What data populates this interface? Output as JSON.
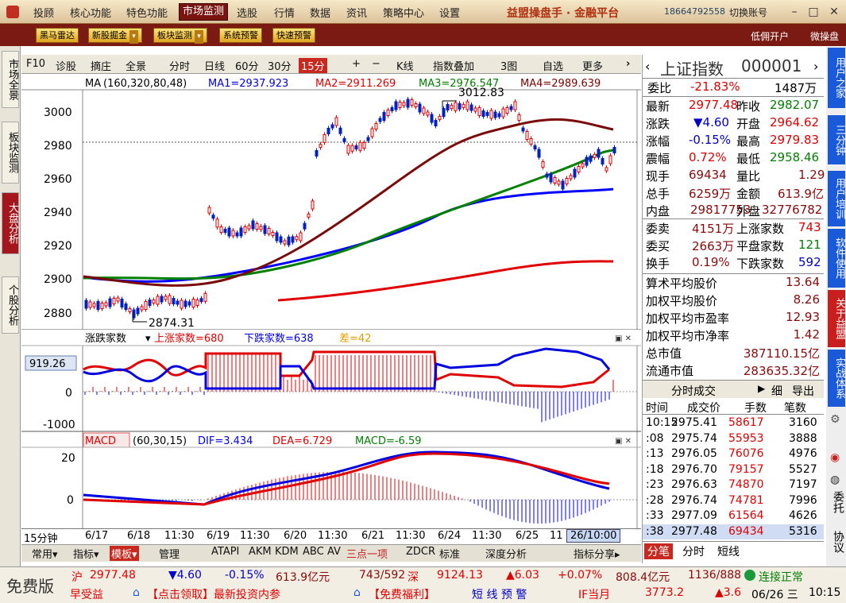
{
  "topbar": {
    "menus": [
      "投顾",
      "核心功能",
      "特色功能",
      "市场监测",
      "选股",
      "行情",
      "数据",
      "资讯",
      "策略中心",
      "设置"
    ],
    "active": "市场监测",
    "title": "益盟操盘手 · 金融平台",
    "phone": "18664792558",
    "switch_account": "切换账号"
  },
  "toolbar2": {
    "buttons": [
      "黑马雷达",
      "新股掘金",
      "板块监测",
      "系统预警",
      "快速预警"
    ],
    "right": [
      "低佣开户",
      "微操盘"
    ]
  },
  "left_tabs": [
    "市场全景",
    "板块监测",
    "大盘分析",
    "个股分析"
  ],
  "chart_toolbar": {
    "items": [
      "F10",
      "诊股",
      "摘庄",
      "全景",
      "分时",
      "日线",
      "60分",
      "30分",
      "15分",
      "+",
      "−",
      "K线",
      "指数叠加",
      "3图",
      "自选",
      "更多"
    ]
  },
  "ma_legend": {
    "name": "MA",
    "params": "(160,320,80,48)",
    "ma1": "MA1=2937.923",
    "ma2": "MA2=2911.269",
    "ma3": "MA3=2976.547",
    "ma4": "MA4=2989.639"
  },
  "kline": {
    "y_ticks": [
      "3000",
      "2980",
      "2960",
      "2940",
      "2920",
      "2900",
      "2880"
    ],
    "high_label": "3012.83",
    "low_label": "2874.31"
  },
  "breadth": {
    "name": "涨跌家数",
    "up": "上涨家数=680",
    "down": "下跌家数=638",
    "diff": "差=42",
    "y_ticks": [
      "0",
      "-1000"
    ],
    "marker": "919.26"
  },
  "macd": {
    "name": "MACD",
    "params": "(60,30,15)",
    "dif": "DIF=3.434",
    "dea": "DEA=6.729",
    "macd": "MACD=-6.59",
    "y_ticks": [
      "20",
      "0"
    ]
  },
  "xaxis": {
    "period": "15分钟",
    "labels": [
      "6/17",
      "6/18",
      "11:30",
      "6/19",
      "11:30",
      "6/20",
      "11:30",
      "6/21",
      "11:30",
      "6/24",
      "11:30",
      "6/25",
      "11"
    ],
    "cursor": "26/10:00"
  },
  "bottom_tabs": [
    "常用",
    "指标",
    "模板",
    "管理",
    "ATAPI",
    "AKM",
    "KDM",
    "ABC",
    "AV",
    "三点一项",
    "ZDCR",
    "标准",
    "深度分析",
    "指标分享"
  ],
  "quote": {
    "name": "上证指数",
    "code": "000001",
    "wb_label": "委比",
    "wb": "-21.83%",
    "wb_vol": "1487万",
    "rows": [
      [
        "最新",
        "2977.48",
        "昨收",
        "2982.07"
      ],
      [
        "涨跌",
        "▼4.60",
        "开盘",
        "2964.62"
      ],
      [
        "涨幅",
        "-0.15%",
        "最高",
        "2979.83"
      ],
      [
        "震幅",
        "0.72%",
        "最低",
        "2958.46"
      ],
      [
        "现手",
        "69434",
        "量比",
        "1.29"
      ],
      [
        "总手",
        "6259万",
        "金额",
        "613.9亿"
      ],
      [
        "内盘",
        "29817753",
        "外盘",
        "32776782"
      ]
    ],
    "rows2": [
      [
        "委卖",
        "4151万",
        "上涨家数",
        "743"
      ],
      [
        "委买",
        "2663万",
        "平盘家数",
        "121"
      ],
      [
        "换手",
        "0.19%",
        "下跌家数",
        "592"
      ]
    ],
    "stats": [
      [
        "算术平均股价",
        "13.64"
      ],
      [
        "加权平均股价",
        "8.26"
      ],
      [
        "加权平均市盈率",
        "12.93"
      ],
      [
        "加权平均市净率",
        "1.42"
      ],
      [
        "总市值",
        "387110.15亿"
      ],
      [
        "流通市值",
        "283635.32亿"
      ]
    ]
  },
  "ticks": {
    "title": "分时成交",
    "btn1": "细",
    "btn2": "导出",
    "headers": [
      "时间",
      "成交价",
      "手数",
      "笔数"
    ],
    "rows": [
      [
        "10:15",
        "2975.41",
        "58617",
        "3160"
      ],
      [
        ":08",
        "2975.74",
        "55953",
        "3888"
      ],
      [
        ":13",
        "2976.05",
        "76076",
        "4976"
      ],
      [
        ":18",
        "2976.70",
        "79157",
        "5527"
      ],
      [
        ":23",
        "2976.63",
        "74870",
        "7197"
      ],
      [
        ":28",
        "2976.74",
        "74781",
        "7996"
      ],
      [
        ":33",
        "2977.09",
        "61564",
        "4626"
      ],
      [
        ":38",
        "2977.48",
        "69434",
        "5316"
      ]
    ],
    "tabs": [
      "分笔",
      "分时",
      "短线"
    ]
  },
  "far_right": [
    "用户之家",
    "三分钟",
    "用户培训",
    "软件使用",
    "关于益盟",
    "实战体系",
    "委托",
    "协议"
  ],
  "status": {
    "free": "免费版",
    "sh_label": "沪",
    "sh": "2977.48",
    "sh_chg": "▼4.60",
    "sh_pct": "-0.15%",
    "sh_amt": "613.9亿元",
    "sh_ud": "743/592",
    "sz_label": "深",
    "sz": "9124.13",
    "sz_chg": "▲6.03",
    "sz_pct": "+0.07%",
    "sz_amt": "808.4亿元",
    "sz_ud": "1136/888",
    "conn": "连接正常",
    "ticker1": "早受益",
    "ticker2": "【点击领取】最新投资内参",
    "ticker3": "【免费福利】",
    "ticker4": "短 线 预 警",
    "if_label": "IF当月",
    "if_val": "3773.2",
    "if_chg": "▲3.6",
    "date": "06/26 三",
    "time": "10:15"
  }
}
